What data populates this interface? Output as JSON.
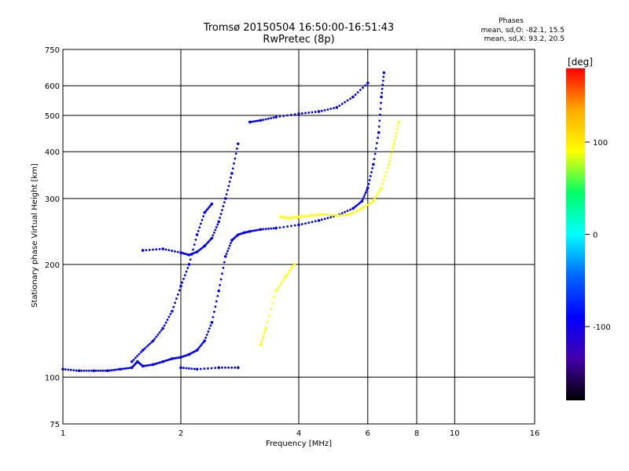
{
  "chart_data": {
    "type": "scatter",
    "title": "Tromsø 20150504 16:50:00-16:51:43",
    "subtitle": "RwPretec (8p)",
    "xlabel": "Frequency [MHz]",
    "ylabel": "Stationary phase Virtual Height [km]",
    "x_scale": "log",
    "y_scale": "log",
    "xlim": [
      1,
      16
    ],
    "ylim": [
      75,
      750
    ],
    "x_ticks": [
      1,
      2,
      4,
      6,
      8,
      10,
      16
    ],
    "y_ticks": [
      75,
      100,
      200,
      300,
      400,
      500,
      600,
      750
    ],
    "grid": true,
    "phase_info": {
      "heading": "Phases",
      "line1": "mean, sd,O: -82.1, 15.5",
      "line2": "mean, sd,X:  93.2, 20.5"
    },
    "colorbar": {
      "label": "[deg]",
      "range": [
        -180,
        180
      ],
      "ticks": [
        100,
        0,
        -100
      ],
      "colors": [
        "#ff0000",
        "#ffaa00",
        "#ffff00",
        "#00ff66",
        "#00ffff",
        "#0066ff",
        "#0000ff",
        "#4400aa",
        "#000000"
      ]
    },
    "series": [
      {
        "color_phase_deg": -100,
        "traces": [
          {
            "x": [
              1.0,
              1.1,
              1.2,
              1.3,
              1.4,
              1.5,
              1.55,
              1.6,
              1.7,
              1.8,
              1.9,
              2.0,
              2.1,
              2.2,
              2.3,
              2.4
            ],
            "y": [
              105,
              104,
              104,
              104,
              105,
              106,
              110,
              107,
              108,
              110,
              112,
              113,
              115,
              118,
              125,
              140
            ]
          },
          {
            "x": [
              2.4,
              2.5,
              2.6,
              2.7,
              2.8,
              2.9,
              3.0,
              3.2,
              3.5,
              4.0,
              4.5,
              5.0,
              5.5,
              5.8,
              6.0,
              6.2,
              6.4,
              6.5,
              6.6
            ],
            "y": [
              140,
              170,
              210,
              232,
              240,
              243,
              245,
              248,
              250,
              255,
              262,
              270,
              282,
              295,
              320,
              370,
              450,
              560,
              650
            ]
          },
          {
            "x": [
              3.0,
              3.2,
              3.5,
              4.0,
              4.5,
              5.0,
              5.5,
              6.0
            ],
            "y": [
              480,
              485,
              495,
              505,
              512,
              525,
              560,
              610
            ]
          }
        ]
      },
      {
        "color_phase_deg": -80,
        "traces": [
          {
            "x": [
              1.5,
              1.6,
              1.7,
              1.8,
              1.9,
              2.0,
              2.1,
              2.2,
              2.3,
              2.4
            ],
            "y": [
              110,
              118,
              125,
              135,
              150,
              175,
              200,
              240,
              275,
              290
            ]
          },
          {
            "x": [
              1.6,
              1.8,
              2.0,
              2.1,
              2.2,
              2.3,
              2.4,
              2.5,
              2.6,
              2.7,
              2.8
            ],
            "y": [
              218,
              220,
              215,
              212,
              216,
              224,
              235,
              260,
              300,
              350,
              420
            ]
          },
          {
            "x": [
              2.0,
              2.2,
              2.5,
              2.8
            ],
            "y": [
              106,
              105,
              106,
              106
            ]
          }
        ]
      },
      {
        "color_phase_deg": 90,
        "traces": [
          {
            "x": [
              3.6,
              3.8,
              4.0,
              4.3,
              4.6,
              5.0,
              5.4,
              5.8,
              6.2,
              6.5,
              6.8,
              7.0,
              7.2
            ],
            "y": [
              268,
              266,
              268,
              270,
              272,
              270,
              272,
              282,
              295,
              320,
              370,
              420,
              480
            ]
          },
          {
            "x": [
              3.2,
              3.3,
              3.5,
              3.7,
              3.9
            ],
            "y": [
              122,
              135,
              170,
              185,
              200
            ]
          }
        ]
      }
    ]
  }
}
